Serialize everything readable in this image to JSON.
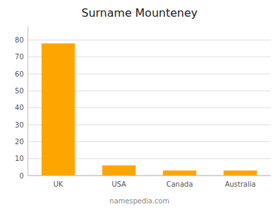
{
  "chart_data": {
    "type": "bar",
    "title": "Surname Mounteney",
    "categories": [
      "UK",
      "USA",
      "Canada",
      "Australia"
    ],
    "values": [
      78,
      6,
      3,
      3
    ],
    "color": "#FFA500",
    "ylim": [
      0,
      88
    ],
    "yticks": [
      0,
      10,
      20,
      30,
      40,
      50,
      60,
      70,
      80
    ],
    "grid": true,
    "annotations": [
      "namespedia.com"
    ]
  }
}
